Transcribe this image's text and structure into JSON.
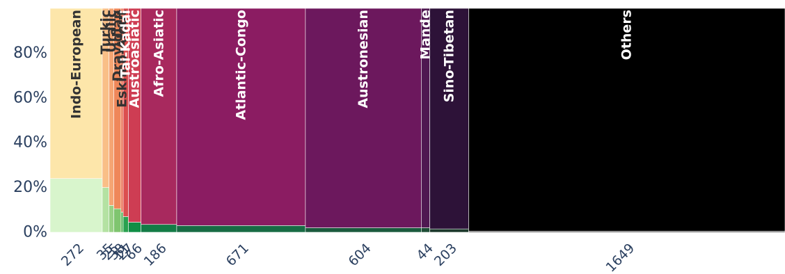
{
  "chart_data": {
    "type": "bar",
    "subtype": "marimekko",
    "title": "",
    "xlabel": "",
    "ylabel": "",
    "ylim": [
      0,
      1
    ],
    "yticks": [
      0,
      0.2,
      0.4,
      0.6,
      0.8
    ],
    "ytick_labels": [
      "0%",
      "20%",
      "40%",
      "60%",
      "80%"
    ],
    "grid": false,
    "legend": "none",
    "categories": [
      "Indo-European",
      "Turkic",
      "Uralic",
      "Dravidian",
      "Eskimo-Aleut",
      "Tai-Kadai",
      "Austroasiatic",
      "Afro-Asiatic",
      "Atlantic-Congo",
      "Austronesian",
      "Mande",
      "Sino-Tibetan",
      "Others"
    ],
    "widths": [
      272,
      35,
      25,
      38,
      11,
      27,
      66,
      186,
      671,
      604,
      44,
      203,
      1649
    ],
    "width_labels": [
      "272",
      "35",
      "25",
      "38",
      "11",
      "27",
      "66",
      "186",
      "671",
      "604",
      "44",
      "203",
      "1649"
    ],
    "series": [
      {
        "values": [
          0.24,
          0.2,
          0.12,
          0.105,
          0.09,
          0.07,
          0.045,
          0.035,
          0.03,
          0.02,
          0.02,
          0.015,
          0.005
        ]
      },
      {
        "values": [
          0.76,
          0.8,
          0.88,
          0.895,
          0.91,
          0.93,
          0.955,
          0.965,
          0.97,
          0.98,
          0.98,
          0.985,
          0.995
        ]
      }
    ],
    "top_colors": [
      "#fde6aa",
      "#f9bf87",
      "#f5a573",
      "#ef8759",
      "#e96c4f",
      "#db4f4f",
      "#ce3d53",
      "#a8295e",
      "#8b1c62",
      "#6c185d",
      "#4f1851",
      "#2d1238",
      "#000000"
    ],
    "bottom_colors": [
      "#d8f5cc",
      "#b4e2a2",
      "#98d185",
      "#7fc56f",
      "#56b45c",
      "#29a14f",
      "#0f8e45",
      "#137c46",
      "#186b44",
      "#1a5a3d",
      "#1d4d35",
      "#1d392c",
      "#252525"
    ],
    "label_colors": [
      "#333333",
      "#333333",
      "#333333",
      "#333333",
      "#333333",
      "#ffffff",
      "#ffffff",
      "#ffffff",
      "#ffffff",
      "#ffffff",
      "#ffffff",
      "#ffffff",
      "#ffffff"
    ]
  }
}
